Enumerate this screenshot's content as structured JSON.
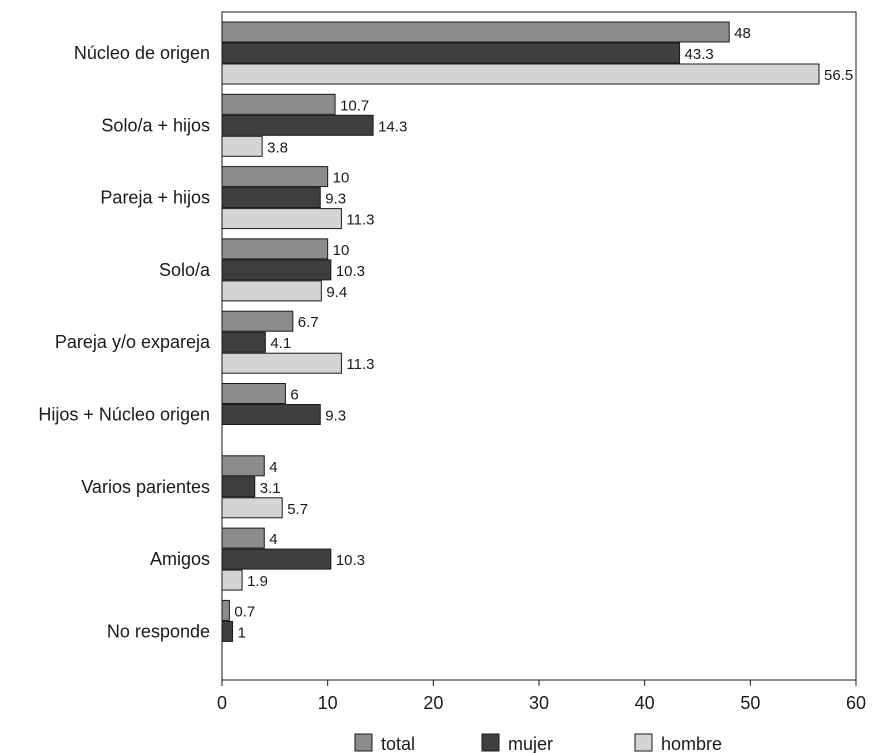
{
  "chart_data": {
    "type": "bar",
    "orientation": "horizontal",
    "title": "",
    "xlabel": "",
    "ylabel": "",
    "xlim": [
      0,
      60
    ],
    "xticks": [
      0,
      10,
      20,
      30,
      40,
      50,
      60
    ],
    "grid": false,
    "legend_position": "bottom",
    "categories": [
      "Núcleo de origen",
      "Solo/a + hijos",
      "Pareja + hijos",
      "Solo/a",
      "Pareja y/o expareja",
      "Hijos + Núcleo origen",
      "Varios parientes",
      "Amigos",
      "No responde"
    ],
    "series": [
      {
        "name": "total",
        "color": "#8c8c8c",
        "values": [
          48,
          10.7,
          10,
          10,
          6.7,
          6,
          4,
          4,
          0.7
        ],
        "labels": [
          "48",
          "10.7",
          "10",
          "10",
          "6.7",
          "6",
          "4",
          "4",
          "0.7"
        ]
      },
      {
        "name": "mujer",
        "color": "#3f3f3f",
        "values": [
          43.3,
          14.3,
          9.3,
          10.3,
          4.1,
          9.3,
          3.1,
          10.3,
          1
        ],
        "labels": [
          "43.3",
          "14.3",
          "9.3",
          "10.3",
          "4.1",
          "9.3",
          "3.1",
          "10.3",
          "1"
        ]
      },
      {
        "name": "hombre",
        "color": "#d4d4d4",
        "values": [
          56.5,
          3.8,
          11.3,
          9.4,
          11.3,
          null,
          5.7,
          1.9,
          null
        ],
        "labels": [
          "56.5",
          "3.8",
          "11.3",
          "9.4",
          "11.3",
          null,
          "5.7",
          "1.9",
          null
        ]
      }
    ]
  }
}
